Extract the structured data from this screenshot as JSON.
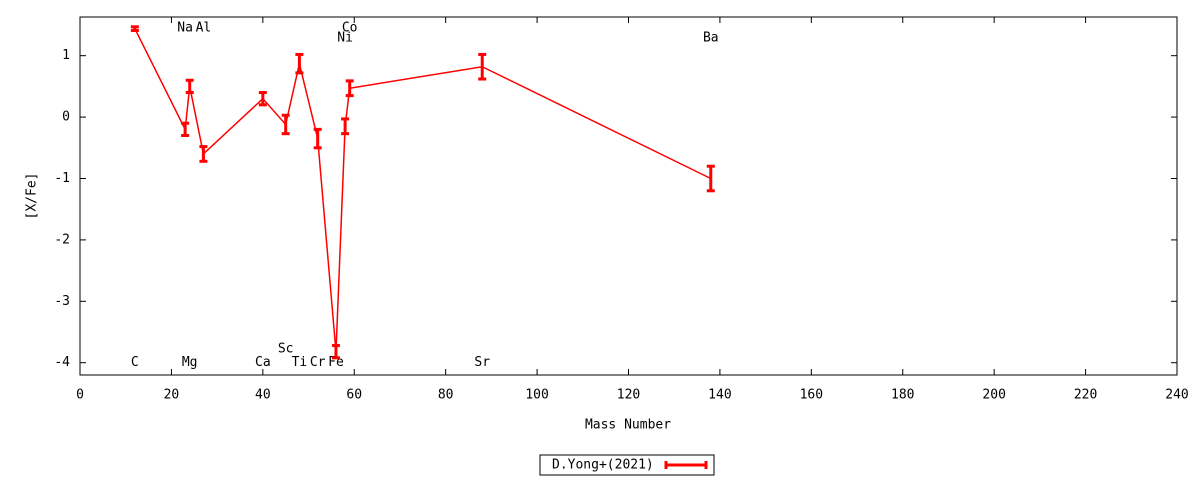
{
  "chart_data": {
    "type": "line",
    "xlabel": "Mass Number",
    "ylabel": "[X/Fe]",
    "x": [
      12,
      23,
      24,
      27,
      40,
      45,
      48,
      52,
      56,
      58,
      59,
      88,
      138
    ],
    "series": [
      {
        "name": "D.Yong+(2021)",
        "color": "#ff0000",
        "values": [
          1.44,
          -0.2,
          0.5,
          -0.6,
          0.3,
          -0.12,
          0.87,
          -0.35,
          -3.82,
          -0.15,
          0.47,
          0.82,
          -1.0
        ],
        "errors": [
          0.03,
          0.1,
          0.1,
          0.12,
          0.1,
          0.15,
          0.15,
          0.15,
          0.1,
          0.12,
          0.12,
          0.2,
          0.2
        ]
      }
    ],
    "annotations": [
      {
        "text": "C",
        "x": 12,
        "y": -4.0
      },
      {
        "text": "Na",
        "x": 23,
        "y": 1.45
      },
      {
        "text": "Mg",
        "x": 24,
        "y": -4.0
      },
      {
        "text": "Al",
        "x": 27,
        "y": 1.45
      },
      {
        "text": "Ca",
        "x": 40,
        "y": -4.0
      },
      {
        "text": "Sc",
        "x": 45,
        "y": -3.78
      },
      {
        "text": "Ti",
        "x": 48,
        "y": -4.0
      },
      {
        "text": "Cr",
        "x": 52,
        "y": -4.0
      },
      {
        "text": "Fe",
        "x": 56,
        "y": -4.0
      },
      {
        "text": "Ni",
        "x": 58,
        "y": 1.29
      },
      {
        "text": "Co",
        "x": 59,
        "y": 1.45
      },
      {
        "text": "Sr",
        "x": 88,
        "y": -4.0
      },
      {
        "text": "Ba",
        "x": 138,
        "y": 1.29
      }
    ],
    "xlim": [
      0,
      240
    ],
    "xticks": [
      0,
      20,
      40,
      60,
      80,
      100,
      120,
      140,
      160,
      180,
      200,
      220,
      240
    ],
    "ylim": [
      -4.2,
      1.63
    ],
    "yticks": [
      -4,
      -3,
      -2,
      -1,
      0,
      1
    ],
    "grid": false,
    "legend": "bottom"
  }
}
